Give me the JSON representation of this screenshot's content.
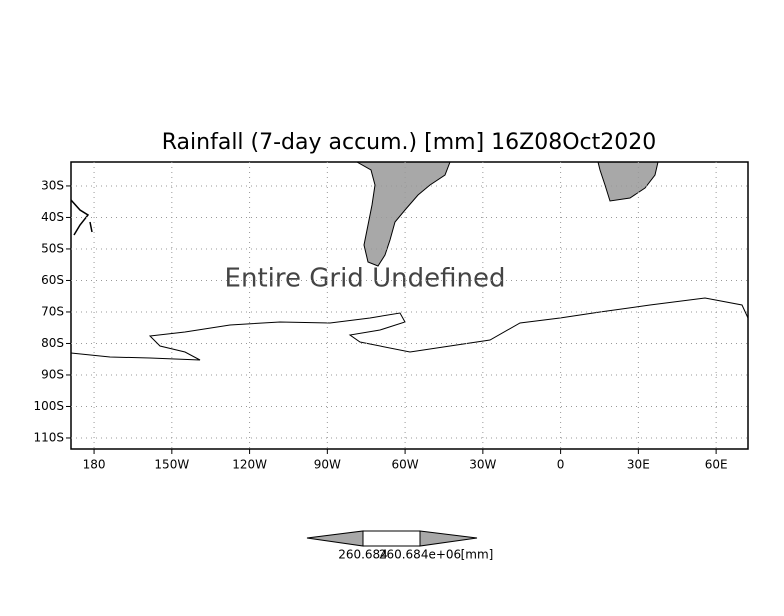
{
  "chart_data": {
    "type": "map",
    "title": "Rainfall (7-day accum.) [mm] 16Z08Oct2020",
    "annotation": "Entire Grid Undefined",
    "xlim": [
      -188.9,
      72.3
    ],
    "xticks": [
      {
        "value": -180,
        "label": "180"
      },
      {
        "value": -150,
        "label": "150W"
      },
      {
        "value": -120,
        "label": "120W"
      },
      {
        "value": -90,
        "label": "90W"
      },
      {
        "value": -60,
        "label": "60W"
      },
      {
        "value": -30,
        "label": "30W"
      },
      0,
      {
        "value": 30,
        "label": "30E"
      },
      {
        "value": 60,
        "label": "60E"
      }
    ],
    "ylim": [
      -22.4,
      -113.5
    ],
    "yticks": [
      {
        "value": -30,
        "label": "30S"
      },
      {
        "value": -40,
        "label": "40S"
      },
      {
        "value": -50,
        "label": "50S"
      },
      {
        "value": -60,
        "label": "60S"
      },
      {
        "value": -70,
        "label": "70S"
      },
      {
        "value": -80,
        "label": "80S"
      },
      {
        "value": -90,
        "label": "90S"
      },
      {
        "value": -100,
        "label": "100S"
      },
      {
        "value": -110,
        "label": "110S"
      }
    ],
    "grid": true,
    "colorbar": {
      "labels": [
        "260.684",
        "260.684e+06"
      ],
      "unit": "[mm]"
    }
  }
}
